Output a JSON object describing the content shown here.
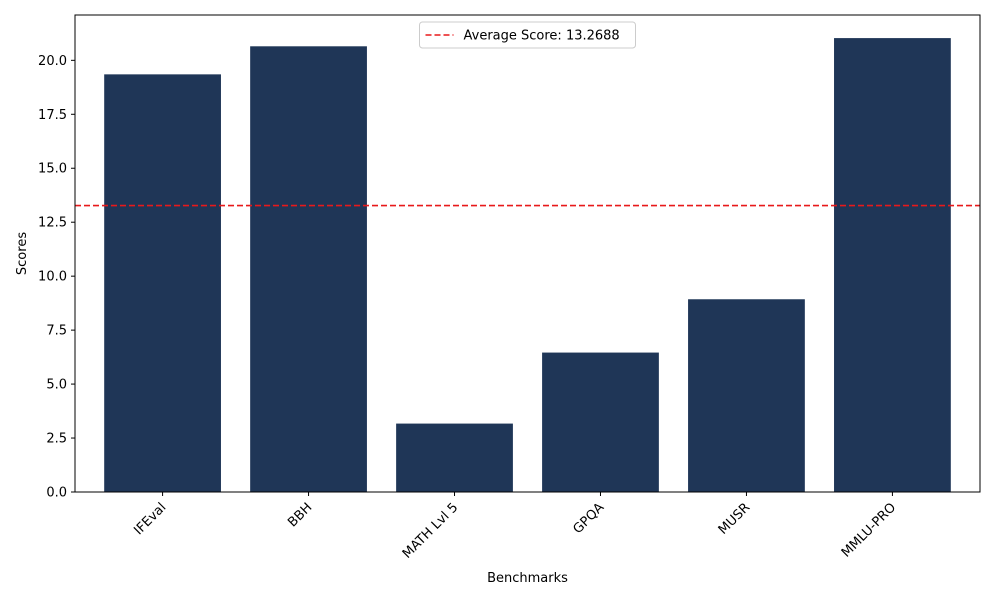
{
  "chart_data": {
    "type": "bar",
    "title": "",
    "xlabel": "Benchmarks",
    "ylabel": "Scores",
    "categories": [
      "IFEval",
      "BBH",
      "MATH Lvl 5",
      "GPQA",
      "MUSR",
      "MMLU-PRO"
    ],
    "values": [
      19.35,
      20.65,
      3.17,
      6.46,
      8.93,
      21.03
    ],
    "ylim": [
      0,
      22.1
    ],
    "yticks": [
      "0.0",
      "2.5",
      "5.0",
      "7.5",
      "10.0",
      "12.5",
      "15.0",
      "17.5",
      "20.0"
    ],
    "bar_color": "#1f3657",
    "average_line": {
      "value": 13.2688,
      "label": "Average Score: 13.2688",
      "color": "#e8191a",
      "style": "dashed"
    },
    "legend_position": "top-center",
    "grid": false
  }
}
